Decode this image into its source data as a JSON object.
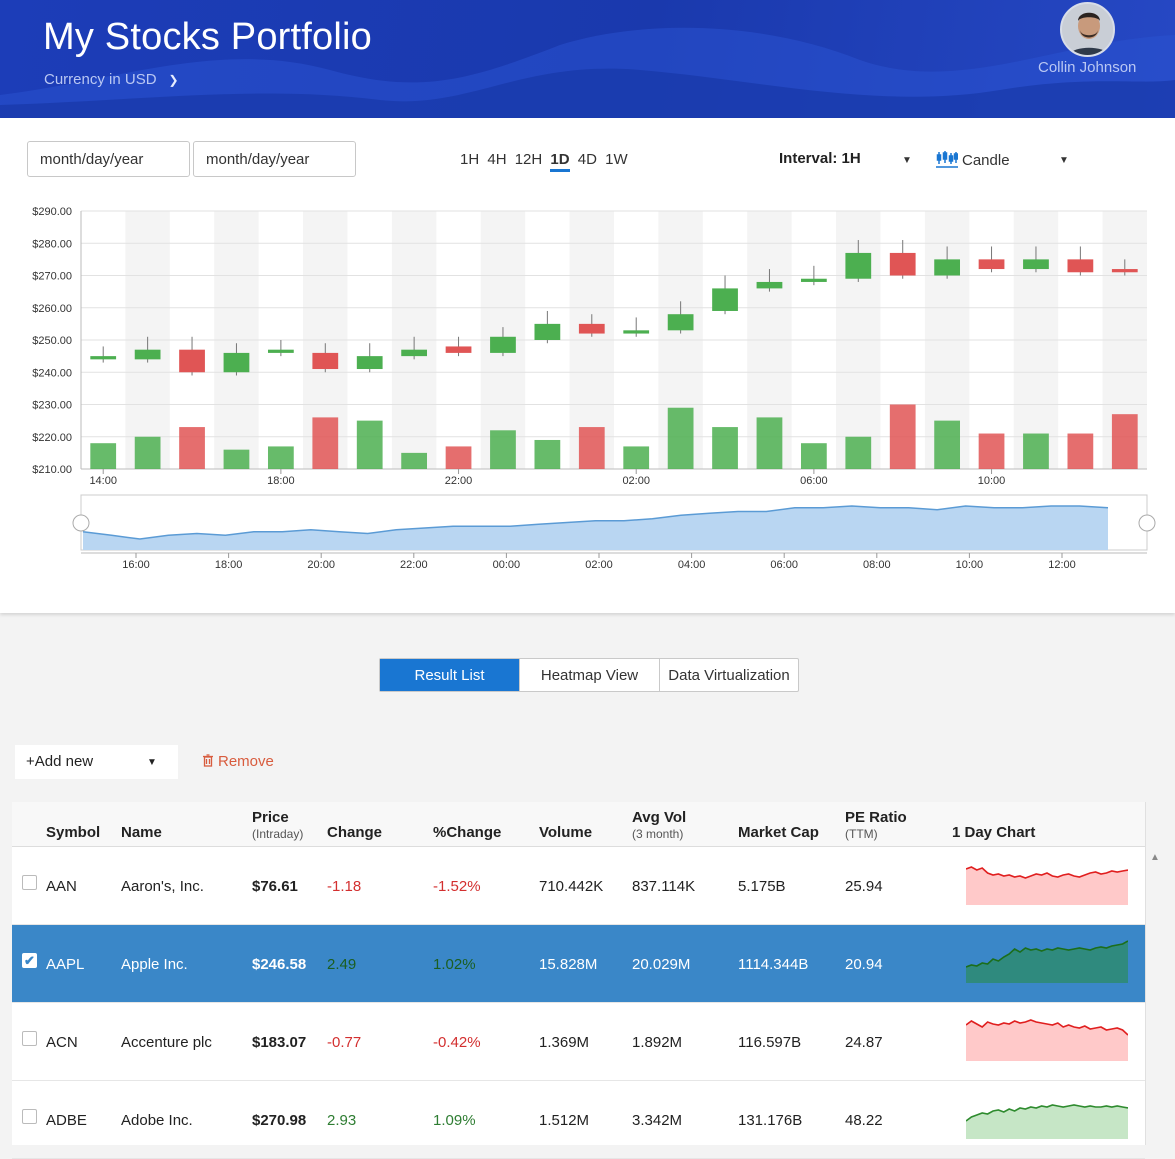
{
  "header": {
    "title": "My Stocks Portfolio",
    "currency_label": "Currency in USD",
    "user_name": "Collin Johnson"
  },
  "toolbar": {
    "date_from_placeholder": "month/day/year",
    "date_to_placeholder": "month/day/year",
    "ranges": [
      "1H",
      "4H",
      "12H",
      "1D",
      "4D",
      "1W"
    ],
    "active_range": "1D",
    "interval_label": "Interval: 1H",
    "chart_type_label": "Candle"
  },
  "chart_data": {
    "type": "candlestick",
    "ylim": [
      210,
      290
    ],
    "yticks": [
      "$290.00",
      "$280.00",
      "$270.00",
      "$260.00",
      "$250.00",
      "$240.00",
      "$230.00",
      "$220.00",
      "$210.00"
    ],
    "xticks": [
      "14:00",
      "18:00",
      "22:00",
      "02:00",
      "06:00",
      "10:00"
    ],
    "candles": [
      {
        "o": 244,
        "c": 245,
        "h": 248,
        "l": 243,
        "v": 218
      },
      {
        "o": 244,
        "c": 247,
        "h": 251,
        "l": 243,
        "v": 220
      },
      {
        "o": 247,
        "c": 240,
        "h": 251,
        "l": 239,
        "v": 223
      },
      {
        "o": 240,
        "c": 246,
        "h": 249,
        "l": 239,
        "v": 216
      },
      {
        "o": 246,
        "c": 247,
        "h": 250,
        "l": 245,
        "v": 217
      },
      {
        "o": 246,
        "c": 241,
        "h": 249,
        "l": 240,
        "v": 226
      },
      {
        "o": 241,
        "c": 245,
        "h": 249,
        "l": 240,
        "v": 225
      },
      {
        "o": 245,
        "c": 247,
        "h": 251,
        "l": 244,
        "v": 215
      },
      {
        "o": 248,
        "c": 246,
        "h": 251,
        "l": 245,
        "v": 217
      },
      {
        "o": 246,
        "c": 251,
        "h": 254,
        "l": 245,
        "v": 222
      },
      {
        "o": 250,
        "c": 255,
        "h": 259,
        "l": 249,
        "v": 219
      },
      {
        "o": 255,
        "c": 252,
        "h": 258,
        "l": 251,
        "v": 223
      },
      {
        "o": 252,
        "c": 253,
        "h": 257,
        "l": 251,
        "v": 217
      },
      {
        "o": 253,
        "c": 258,
        "h": 262,
        "l": 252,
        "v": 229
      },
      {
        "o": 259,
        "c": 266,
        "h": 270,
        "l": 258,
        "v": 223
      },
      {
        "o": 266,
        "c": 268,
        "h": 272,
        "l": 265,
        "v": 226
      },
      {
        "o": 268,
        "c": 269,
        "h": 273,
        "l": 267,
        "v": 218
      },
      {
        "o": 269,
        "c": 277,
        "h": 281,
        "l": 268,
        "v": 220
      },
      {
        "o": 277,
        "c": 270,
        "h": 281,
        "l": 269,
        "v": 230
      },
      {
        "o": 270,
        "c": 275,
        "h": 279,
        "l": 269,
        "v": 225
      },
      {
        "o": 275,
        "c": 272,
        "h": 279,
        "l": 271,
        "v": 221
      },
      {
        "o": 272,
        "c": 275,
        "h": 279,
        "l": 271,
        "v": 221
      },
      {
        "o": 275,
        "c": 271,
        "h": 279,
        "l": 270,
        "v": 221
      },
      {
        "o": 272,
        "c": 271,
        "h": 275,
        "l": 270,
        "v": 227
      }
    ],
    "navigator": {
      "xticks": [
        "16:00",
        "18:00",
        "20:00",
        "22:00",
        "00:00",
        "02:00",
        "04:00",
        "06:00",
        "08:00",
        "10:00",
        "12:00"
      ],
      "values": [
        245,
        243,
        241,
        243,
        244,
        243,
        245,
        245,
        246,
        245,
        244,
        246,
        247,
        248,
        248,
        248,
        249,
        250,
        251,
        251,
        252,
        254,
        255,
        256,
        256,
        258,
        258,
        259,
        258,
        258,
        257,
        259,
        258,
        258,
        259,
        259,
        258
      ]
    }
  },
  "views": {
    "tabs": [
      "Result List",
      "Heatmap View",
      "Data Virtualization"
    ],
    "active": "Result List"
  },
  "actions": {
    "add_new_label": "Add new",
    "remove_label": "Remove"
  },
  "grid": {
    "columns": {
      "symbol": "Symbol",
      "name": "Name",
      "price": "Price",
      "price_sub": "(Intraday)",
      "change": "Change",
      "pct_change": "%Change",
      "volume": "Volume",
      "avg_vol": "Avg Vol",
      "avg_vol_sub": "(3 month)",
      "market_cap": "Market Cap",
      "pe_ratio": "PE Ratio",
      "pe_ratio_sub": "(TTM)",
      "day_chart": "1 Day Chart"
    },
    "rows": [
      {
        "symbol": "AAN",
        "name": "Aaron's, Inc.",
        "price": "$76.61",
        "change": "-1.18",
        "pct": "-1.52%",
        "volume": "710.442K",
        "avg_vol": "837.114K",
        "market_cap": "5.175B",
        "pe": "25.94",
        "selected": false,
        "trend": "down",
        "spark": [
          10,
          8,
          11,
          9,
          14,
          16,
          15,
          17,
          16,
          18,
          17,
          19,
          17,
          15,
          16,
          14,
          17,
          18,
          16,
          15,
          17,
          18,
          16,
          14,
          13,
          15,
          14,
          12,
          13,
          12,
          11
        ]
      },
      {
        "symbol": "AAPL",
        "name": "Apple Inc.",
        "price": "$246.58",
        "change": "2.49",
        "pct": "1.02%",
        "volume": "15.828M",
        "avg_vol": "20.029M",
        "market_cap": "1114.344B",
        "pe": "20.94",
        "selected": true,
        "trend": "up",
        "spark": [
          30,
          28,
          29,
          26,
          27,
          22,
          24,
          20,
          17,
          12,
          15,
          11,
          13,
          12,
          14,
          12,
          13,
          11,
          12,
          13,
          12,
          11,
          12,
          13,
          11,
          10,
          11,
          9,
          8,
          7,
          4
        ]
      },
      {
        "symbol": "ACN",
        "name": "Accenture plc",
        "price": "$183.07",
        "change": "-0.77",
        "pct": "-0.42%",
        "volume": "1.369M",
        "avg_vol": "1.892M",
        "market_cap": "116.597B",
        "pe": "24.87",
        "selected": false,
        "trend": "down",
        "spark": [
          10,
          6,
          9,
          12,
          7,
          9,
          10,
          8,
          9,
          6,
          8,
          7,
          5,
          7,
          8,
          9,
          10,
          8,
          12,
          10,
          12,
          13,
          11,
          14,
          13,
          12,
          15,
          14,
          13,
          15,
          20
        ]
      },
      {
        "symbol": "ADBE",
        "name": "Adobe Inc.",
        "price": "$270.98",
        "change": "2.93",
        "pct": "1.09%",
        "volume": "1.512M",
        "avg_vol": "3.342M",
        "market_cap": "131.176B",
        "pe": "48.22",
        "selected": false,
        "trend": "up",
        "spark": [
          28,
          24,
          22,
          20,
          21,
          18,
          17,
          19,
          16,
          18,
          15,
          16,
          14,
          15,
          13,
          14,
          12,
          13,
          14,
          13,
          12,
          13,
          14,
          13,
          14,
          14,
          13,
          14,
          13,
          14,
          15
        ]
      }
    ]
  },
  "colors": {
    "accent": "#1976d2",
    "header_bg": "#1c3db8",
    "up": "#4caf50",
    "down": "#e05555",
    "selected_row": "#3a87c8"
  }
}
